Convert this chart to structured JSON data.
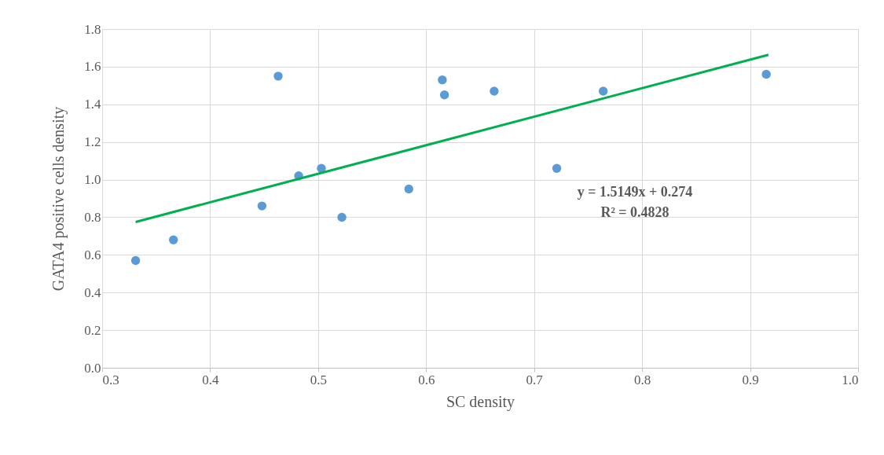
{
  "chart_data": {
    "type": "scatter",
    "xlabel": "SC density",
    "ylabel": "GATA4 positive cells density",
    "xlim": [
      0.3,
      1.0
    ],
    "xticks": [
      {
        "value": 0.3,
        "label": "0.3"
      },
      {
        "value": 0.4,
        "label": "0.4"
      },
      {
        "value": 0.5,
        "label": "0.5"
      },
      {
        "value": 0.6,
        "label": "0.6"
      },
      {
        "value": 0.7,
        "label": "0.7"
      },
      {
        "value": 0.8,
        "label": "0.8"
      },
      {
        "value": 0.9,
        "label": "0.9"
      },
      {
        "value": 1.0,
        "label": "1.0"
      }
    ],
    "ylim": [
      0,
      1.8
    ],
    "yticks": [
      {
        "value": 0,
        "label": "0.0"
      },
      {
        "value": 0.2,
        "label": "0.2"
      },
      {
        "value": 0.4,
        "label": "0.4"
      },
      {
        "value": 0.6,
        "label": "0.6"
      },
      {
        "value": 0.8,
        "label": "0.8"
      },
      {
        "value": 1.0,
        "label": "1.0"
      },
      {
        "value": 1.2,
        "label": "1.2"
      },
      {
        "value": 1.4,
        "label": "1.4"
      },
      {
        "value": 1.6,
        "label": "1.6"
      },
      {
        "value": 1.8,
        "label": "1.8"
      }
    ],
    "grid": true,
    "series": [
      {
        "marker": "circle",
        "color": "#5b9bd5",
        "x": [
          0.331,
          0.366,
          0.448,
          0.463,
          0.482,
          0.503,
          0.522,
          0.584,
          0.615,
          0.617,
          0.663,
          0.721,
          0.764,
          0.915
        ],
        "values": [
          0.57,
          0.68,
          0.86,
          1.55,
          1.02,
          1.06,
          0.8,
          0.95,
          1.53,
          1.45,
          1.47,
          1.06,
          1.47,
          1.56
        ]
      },
      {
        "type": "line",
        "color": "#00b050",
        "x": [
          0.331,
          0.917
        ],
        "values": [
          0.775,
          1.663
        ]
      }
    ],
    "annotations": [
      "y = 1.5149x + 0.274",
      "R² = 0.4828"
    ]
  }
}
